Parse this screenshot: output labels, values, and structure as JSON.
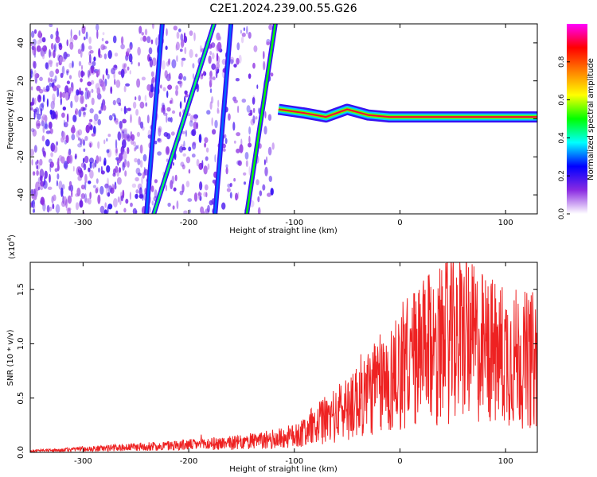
{
  "title": "C2E1.2024.239.00.55.G26",
  "chart_data": [
    {
      "type": "heatmap",
      "xlabel": "Height of straight line (km)",
      "ylabel": "Frequency (Hz)",
      "xlim": [
        -350,
        130
      ],
      "ylim": [
        -50,
        50
      ],
      "xticks": [
        -300,
        -200,
        -100,
        0,
        100
      ],
      "yticks": [
        -40,
        -20,
        0,
        20,
        40
      ],
      "colorbar": {
        "label": "Normalized spectral amplitude",
        "range": [
          0.0,
          1.0
        ],
        "ticks": [
          0.0,
          0.2,
          0.4,
          0.6,
          0.8
        ],
        "tick_labels": [
          "0.0",
          "0.2",
          "0.4",
          "0.6",
          "0.8"
        ],
        "colormap": [
          "#ffffff",
          "#8a2be2",
          "#0000ff",
          "#00ffff",
          "#00ff00",
          "#ffff00",
          "#ff8000",
          "#ff0000",
          "#ff00ff"
        ]
      },
      "features": [
        {
          "kind": "noise",
          "x_range": [
            -350,
            -120
          ],
          "level": 0.15
        },
        {
          "kind": "track",
          "x": [
            -240,
            -225
          ],
          "y": [
            -50,
            50
          ],
          "level": 0.3
        },
        {
          "kind": "track",
          "x": [
            -233,
            -176
          ],
          "y": [
            -50,
            50
          ],
          "level": 0.45
        },
        {
          "kind": "track",
          "x": [
            -175,
            -160
          ],
          "y": [
            -50,
            50
          ],
          "level": 0.3
        },
        {
          "kind": "track",
          "x": [
            -145,
            -118
          ],
          "y": [
            -50,
            50
          ],
          "level": 0.5
        },
        {
          "kind": "carrier",
          "x": [
            -115,
            -90,
            -70,
            -50,
            -30,
            -10,
            10,
            130
          ],
          "y": [
            5,
            3,
            1,
            5,
            2,
            1,
            1,
            1
          ],
          "level": 0.9
        }
      ]
    },
    {
      "type": "line",
      "xlabel": "Height of straight line (km)",
      "ylabel": "SNR (10 * v/v)",
      "y_scale_label": "(x10",
      "y_scale_exp": "4",
      "xlim": [
        -350,
        130
      ],
      "ylim": [
        0,
        17500
      ],
      "xticks": [
        -300,
        -200,
        -100,
        0,
        100
      ],
      "yticks": [
        0,
        5000,
        10000,
        15000
      ],
      "ytick_labels": [
        "0.0",
        "0.5",
        "1.0",
        "1.5"
      ],
      "color": "#ee2222",
      "series": [
        {
          "x": [
            -350,
            -300,
            -250,
            -200,
            -150,
            -120,
            -100,
            -80,
            -60,
            -40,
            -20,
            -10,
            0,
            20,
            40,
            60,
            80,
            100,
            120,
            130
          ],
          "y": [
            120,
            300,
            500,
            700,
            900,
            1200,
            1500,
            2500,
            3500,
            5000,
            6200,
            6500,
            8000,
            9000,
            10000,
            10500,
            9500,
            9000,
            8500,
            8500
          ]
        }
      ]
    }
  ]
}
